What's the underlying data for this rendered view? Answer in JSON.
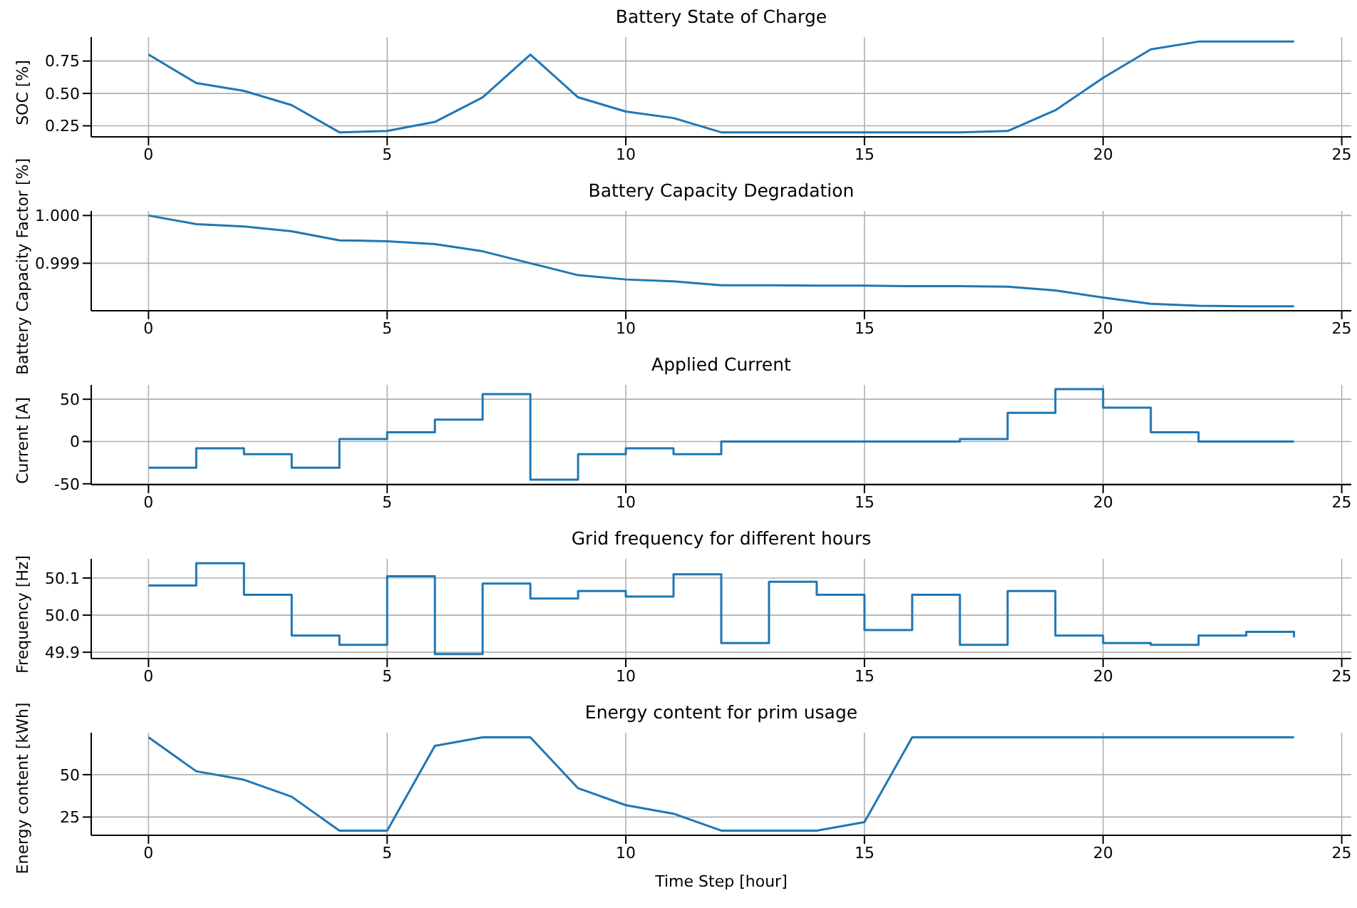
{
  "chart_data": [
    {
      "type": "line",
      "title": "Battery State of Charge",
      "ylabel": "SOC [%]",
      "x": [
        0,
        1,
        2,
        3,
        4,
        5,
        6,
        7,
        8,
        9,
        10,
        11,
        12,
        13,
        14,
        15,
        16,
        17,
        18,
        19,
        20,
        21,
        22,
        23,
        24
      ],
      "series": [
        {
          "color": "#1f77b4",
          "values": [
            0.8,
            0.58,
            0.52,
            0.41,
            0.2,
            0.21,
            0.28,
            0.47,
            0.8,
            0.47,
            0.36,
            0.31,
            0.2,
            0.2,
            0.2,
            0.2,
            0.2,
            0.2,
            0.21,
            0.37,
            0.62,
            0.84,
            0.9,
            0.9,
            0.9
          ]
        }
      ],
      "xlim": [
        -1.2,
        25.2
      ],
      "xticks": [
        0,
        5,
        10,
        15,
        20,
        25
      ],
      "ylim": [
        0.165,
        0.935
      ],
      "yticks": [
        0.25,
        {
          "value": 0.5,
          "label": "0.50"
        },
        0.75
      ],
      "grid": true
    },
    {
      "type": "line",
      "title": "Battery Capacity Degradation",
      "ylabel": "Battery Capacity Factor [%]",
      "x": [
        0,
        1,
        2,
        3,
        4,
        5,
        6,
        7,
        8,
        9,
        10,
        11,
        12,
        13,
        14,
        15,
        16,
        17,
        18,
        19,
        20,
        21,
        22,
        23,
        24
      ],
      "series": [
        {
          "color": "#1f77b4",
          "values": [
            1.0,
            0.99982,
            0.99977,
            0.99967,
            0.99948,
            0.99946,
            0.9994,
            0.99925,
            0.999,
            0.99875,
            0.99866,
            0.99862,
            0.99854,
            0.99854,
            0.99853,
            0.99853,
            0.99852,
            0.99852,
            0.99851,
            0.99843,
            0.99828,
            0.99815,
            0.99811,
            0.9981,
            0.9981
          ]
        }
      ],
      "xlim": [
        -1.2,
        25.2
      ],
      "xticks": [
        0,
        5,
        10,
        15,
        20,
        25
      ],
      "ylim": [
        0.998005,
        1.000095
      ],
      "yticks": [
        {
          "value": 0.999,
          "label": "0.999"
        },
        {
          "value": 1.0,
          "label": "1.000"
        }
      ],
      "grid": true
    },
    {
      "type": "step",
      "title": "Applied Current",
      "ylabel": "Current [A]",
      "x": [
        0,
        1,
        2,
        3,
        4,
        5,
        6,
        7,
        8,
        9,
        10,
        11,
        12,
        13,
        14,
        15,
        16,
        17,
        18,
        19,
        20,
        21,
        22,
        23,
        24
      ],
      "series": [
        {
          "color": "#1f77b4",
          "values": [
            -31,
            -8,
            -15,
            -31,
            3,
            11,
            26,
            56,
            -45,
            -15,
            -8,
            -15,
            0,
            0,
            0,
            0,
            0,
            3,
            34,
            62,
            40,
            11,
            0,
            0,
            0
          ]
        }
      ],
      "xlim": [
        -1.2,
        25.2
      ],
      "xticks": [
        0,
        5,
        10,
        15,
        20,
        25
      ],
      "ylim": [
        -51,
        67
      ],
      "yticks": [
        -50,
        0,
        50
      ],
      "grid": true
    },
    {
      "type": "step",
      "title": "Grid frequency for different hours",
      "ylabel": "Frequency [Hz]",
      "x": [
        0,
        1,
        2,
        3,
        4,
        5,
        6,
        7,
        8,
        9,
        10,
        11,
        12,
        13,
        14,
        15,
        16,
        17,
        18,
        19,
        20,
        21,
        22,
        23,
        24
      ],
      "series": [
        {
          "color": "#1f77b4",
          "values": [
            50.08,
            50.14,
            50.055,
            49.945,
            49.92,
            50.105,
            49.895,
            50.085,
            50.045,
            50.065,
            50.05,
            50.11,
            49.925,
            50.09,
            50.055,
            49.96,
            50.055,
            49.92,
            50.065,
            49.945,
            49.925,
            49.92,
            49.945,
            49.955,
            49.94
          ]
        }
      ],
      "xlim": [
        -1.2,
        25.2
      ],
      "xticks": [
        0,
        5,
        10,
        15,
        20,
        25
      ],
      "ylim": [
        49.883,
        50.152
      ],
      "yticks": [
        49.9,
        {
          "value": 50.0,
          "label": "50.0"
        },
        50.1
      ],
      "grid": true
    },
    {
      "type": "line",
      "title": "Energy content for prim usage",
      "xlabel": "Time Step [hour]",
      "ylabel": "Energy content [kWh]",
      "x": [
        0,
        1,
        2,
        3,
        4,
        5,
        6,
        7,
        8,
        9,
        10,
        11,
        12,
        13,
        14,
        15,
        16,
        17,
        18,
        19,
        20,
        21,
        22,
        23,
        24
      ],
      "series": [
        {
          "color": "#1f77b4",
          "values": [
            72,
            52,
            47,
            37,
            17,
            17,
            67,
            72,
            72,
            42,
            32,
            27,
            17,
            17,
            17,
            22,
            72,
            72,
            72,
            72,
            72,
            72,
            72,
            72,
            72
          ]
        }
      ],
      "xlim": [
        -1.2,
        25.2
      ],
      "xticks": [
        0,
        5,
        10,
        15,
        20,
        25
      ],
      "ylim": [
        14.25,
        74.75
      ],
      "yticks": [
        25,
        50
      ],
      "grid": true
    }
  ]
}
